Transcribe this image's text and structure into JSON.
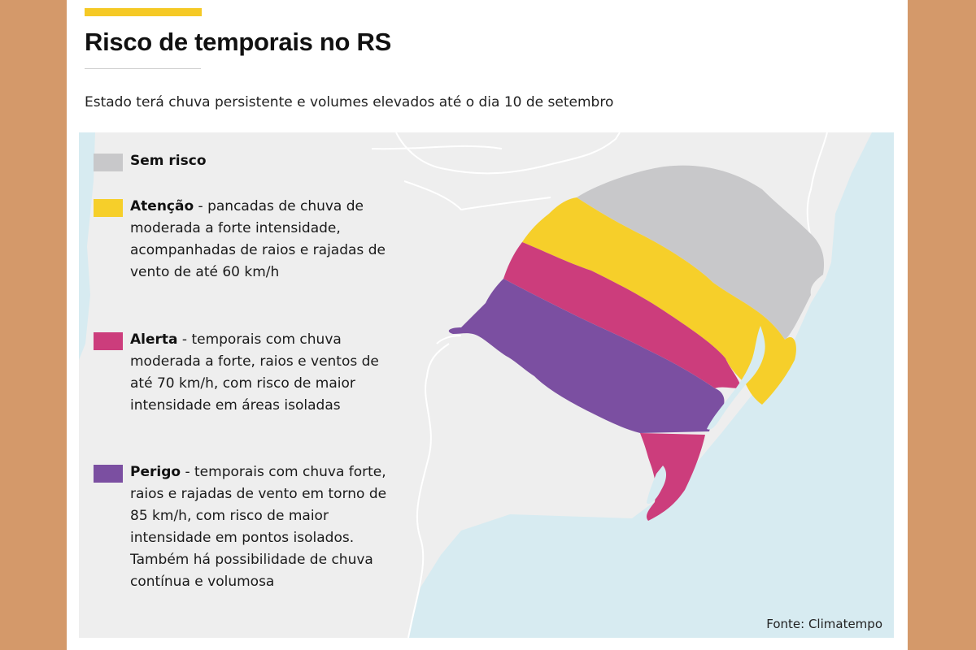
{
  "header": {
    "title": "Risco de temporais no RS",
    "subtitle": "Estado terá chuva persistente e volumes elevados até o dia 10 de setembro"
  },
  "colors": {
    "page_bg": "#d4996a",
    "accent": "#f5c925",
    "sem_risco": "#c8c8ca",
    "atencao": "#f6cf2a",
    "alerta": "#cc3d7c",
    "perigo": "#7b4fa1",
    "land": "#eeeeee",
    "water": "#d7ebf1"
  },
  "legend": {
    "items": [
      {
        "key": "sem_risco",
        "name": "Sem risco",
        "desc": ""
      },
      {
        "key": "atencao",
        "name": "Atenção",
        "desc": " - pancadas de chuva de moderada a forte intensidade, acompanhadas de raios e rajadas de vento de até 60 km/h"
      },
      {
        "key": "alerta",
        "name": "Alerta",
        "desc": " - temporais com chuva moderada a forte, raios e ventos de até 70 km/h, com risco de maior intensidade em áreas isoladas"
      },
      {
        "key": "perigo",
        "name": "Perigo",
        "desc": " - temporais com chuva forte, raios e rajadas de vento em torno de 85 km/h, com risco de maior intensidade em pontos isolados. Também há possibilidade de chuva contínua e volumosa"
      }
    ]
  },
  "source": "Fonte: Climatempo"
}
